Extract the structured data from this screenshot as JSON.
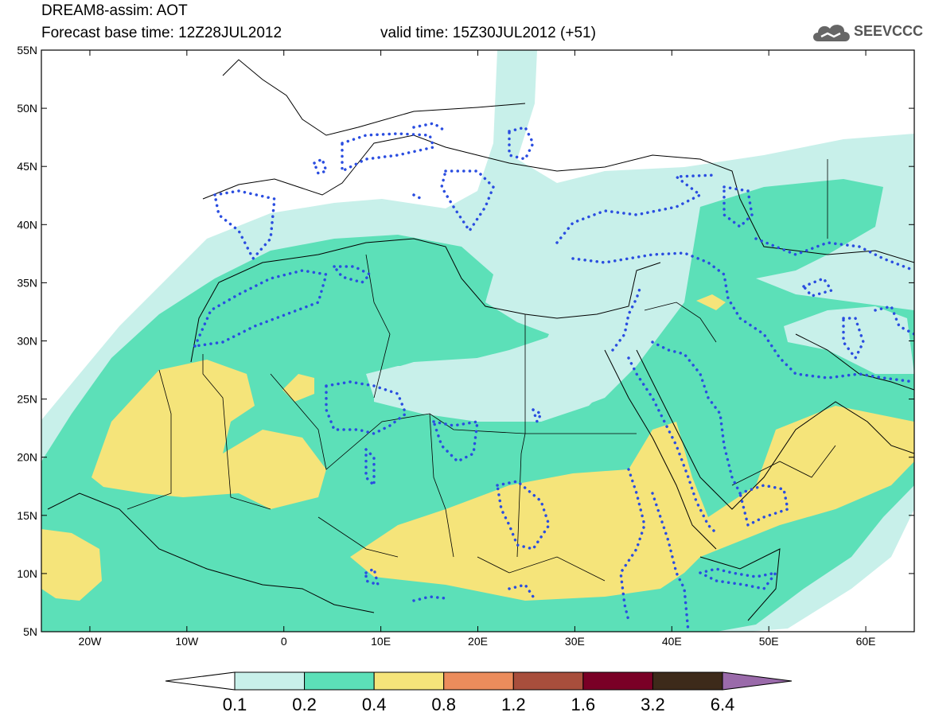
{
  "header": {
    "model_line": "DREAM8-assim: AOT",
    "base_time": "Forecast base time: 12Z28JUL2012",
    "valid_time": "valid time: 15Z30JUL2012 (+51)"
  },
  "logo": {
    "icon": "cloud-icon",
    "text": "SEEVCCC"
  },
  "map": {
    "lat_labels": [
      "55N",
      "50N",
      "45N",
      "40N",
      "35N",
      "30N",
      "25N",
      "20N",
      "15N",
      "10N",
      "5N"
    ],
    "lon_labels": [
      "20W",
      "10W",
      "0",
      "10E",
      "20E",
      "30E",
      "40E",
      "50E",
      "60E"
    ],
    "lat_range": [
      5,
      55
    ],
    "lon_range": [
      -25,
      65
    ]
  },
  "colorbar": {
    "labels": [
      "0.1",
      "0.2",
      "0.4",
      "0.8",
      "1.2",
      "1.6",
      "3.2",
      "6.4"
    ],
    "colors": [
      "#ffffff",
      "#c8f0ea",
      "#5ce0b8",
      "#f5e47a",
      "#eb8c5c",
      "#a84e3c",
      "#7a0026",
      "#3d2a1a",
      "#9a6aaa"
    ]
  },
  "colors": {
    "level1": "#c8f0ea",
    "level2": "#5ce0b8",
    "level3": "#f5e47a",
    "contour": "#2a4de0",
    "border": "#000000"
  }
}
